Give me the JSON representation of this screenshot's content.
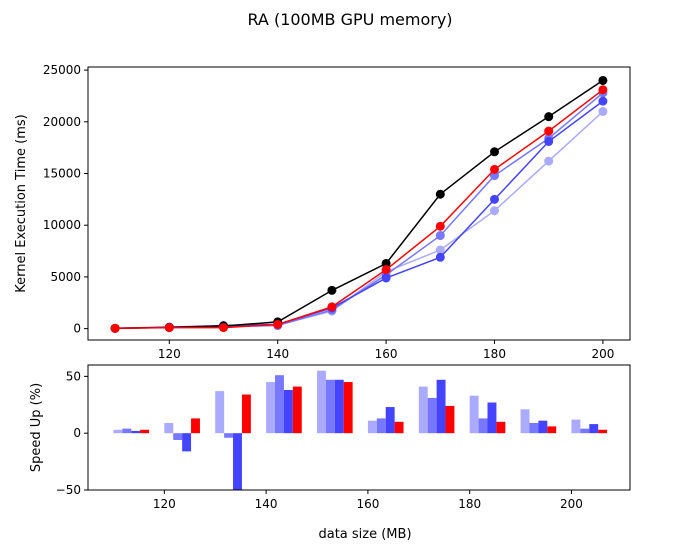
{
  "figure": {
    "title": "RA (100MB GPU memory)",
    "xlabel": "data size (MB)"
  },
  "chart_data": [
    {
      "type": "line",
      "ylabel": "Kernel Execution Time (ms)",
      "x": [
        110,
        120,
        130,
        140,
        150,
        160,
        170,
        180,
        190,
        200
      ],
      "xlim": [
        105,
        205
      ],
      "ylim": [
        -1100,
        25300
      ],
      "xticks": [
        120,
        140,
        160,
        180,
        200
      ],
      "yticks": [
        0,
        5000,
        10000,
        15000,
        20000,
        25000
      ],
      "grid": false,
      "series": [
        {
          "color": "#000000",
          "values": [
            30,
            120,
            250,
            650,
            3700,
            6300,
            13000,
            17100,
            20500,
            24000
          ]
        },
        {
          "color": "#aaaaff",
          "values": [
            30,
            100,
            200,
            350,
            1700,
            5500,
            7600,
            11400,
            16200,
            21000
          ]
        },
        {
          "color": "#7777ff",
          "values": [
            30,
            110,
            200,
            300,
            1800,
            5200,
            9000,
            14800,
            18400,
            22800
          ]
        },
        {
          "color": "#4444ff",
          "values": [
            30,
            150,
            300,
            400,
            2000,
            4900,
            6900,
            12500,
            18100,
            22000
          ]
        },
        {
          "color": "#ff0000",
          "values": [
            30,
            100,
            100,
            400,
            2100,
            5700,
            9900,
            15400,
            19100,
            23100
          ]
        }
      ]
    },
    {
      "type": "bar",
      "ylabel": "Speed Up (%)",
      "categories": [
        110,
        120,
        130,
        140,
        150,
        160,
        170,
        180,
        190,
        200
      ],
      "xlim": [
        105,
        211.5
      ],
      "ylim": [
        -50,
        60
      ],
      "xticks": [
        120,
        140,
        160,
        180,
        200
      ],
      "yticks": [
        -50,
        0,
        50
      ],
      "grid": false,
      "series": [
        {
          "color": "#aaaaff",
          "values": [
            3,
            9,
            37,
            45,
            55,
            11,
            41,
            33,
            21,
            12
          ]
        },
        {
          "color": "#7777ff",
          "values": [
            4,
            -6,
            -4,
            51,
            47,
            13,
            31,
            13,
            9,
            4
          ]
        },
        {
          "color": "#4444ff",
          "values": [
            2,
            -16,
            -52,
            38,
            47,
            23,
            47,
            27,
            11,
            8
          ]
        },
        {
          "color": "#ff0000",
          "values": [
            3,
            13,
            34,
            41,
            45,
            10,
            24,
            10,
            6,
            3
          ]
        }
      ]
    }
  ]
}
